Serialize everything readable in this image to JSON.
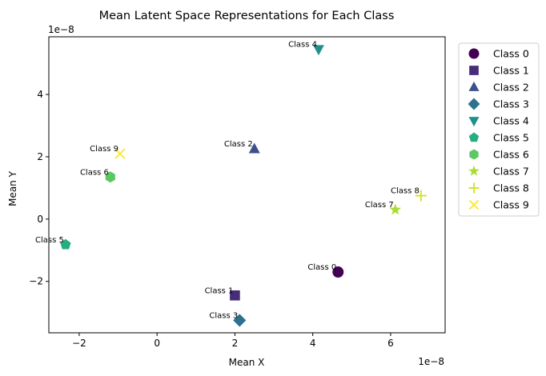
{
  "chart_data": {
    "type": "scatter",
    "title": "Mean Latent Space Representations for Each Class",
    "xlabel": "Mean X",
    "ylabel": "Mean Y",
    "x_offset_label": "1e−8",
    "y_offset_label": "1e−8",
    "xlim": [
      -2.78,
      7.4
    ],
    "ylim": [
      -3.65,
      5.85
    ],
    "x_scale": 1e-08,
    "y_scale": 1e-08,
    "xticks": [
      -2,
      0,
      2,
      4,
      6
    ],
    "xtick_labels": [
      "−2",
      "0",
      "2",
      "4",
      "6"
    ],
    "yticks": [
      -2,
      0,
      2,
      4
    ],
    "ytick_labels": [
      "−2",
      "0",
      "2",
      "4"
    ],
    "grid": false,
    "legend_position": "outside-right",
    "series": [
      {
        "name": "Class 0",
        "label": "Class 0",
        "x": 4.65,
        "y": -1.7,
        "marker": "circle",
        "color": "#440154"
      },
      {
        "name": "Class 1",
        "label": "Class 1",
        "x": 2.0,
        "y": -2.45,
        "marker": "square",
        "color": "#472c7a"
      },
      {
        "name": "Class 2",
        "label": "Class 2",
        "x": 2.5,
        "y": 2.25,
        "marker": "triangle-up",
        "color": "#3b518b"
      },
      {
        "name": "Class 3",
        "label": "Class 3",
        "x": 2.12,
        "y": -3.25,
        "marker": "diamond",
        "color": "#2c718e"
      },
      {
        "name": "Class 4",
        "label": "Class 4",
        "x": 4.15,
        "y": 5.45,
        "marker": "triangle-down",
        "color": "#21908d"
      },
      {
        "name": "Class 5",
        "label": "Class 5",
        "x": -2.35,
        "y": -0.82,
        "marker": "pentagon",
        "color": "#27ad81"
      },
      {
        "name": "Class 6",
        "label": "Class 6",
        "x": -1.2,
        "y": 1.35,
        "marker": "hexagon",
        "color": "#5cc863"
      },
      {
        "name": "Class 7",
        "label": "Class 7",
        "x": 6.12,
        "y": 0.3,
        "marker": "star",
        "color": "#aadc32"
      },
      {
        "name": "Class 8",
        "label": "Class 8",
        "x": 6.78,
        "y": 0.75,
        "marker": "plus",
        "color": "#d0e11c"
      },
      {
        "name": "Class 9",
        "label": "Class 9",
        "x": -0.95,
        "y": 2.1,
        "marker": "x",
        "color": "#fde725"
      }
    ]
  }
}
